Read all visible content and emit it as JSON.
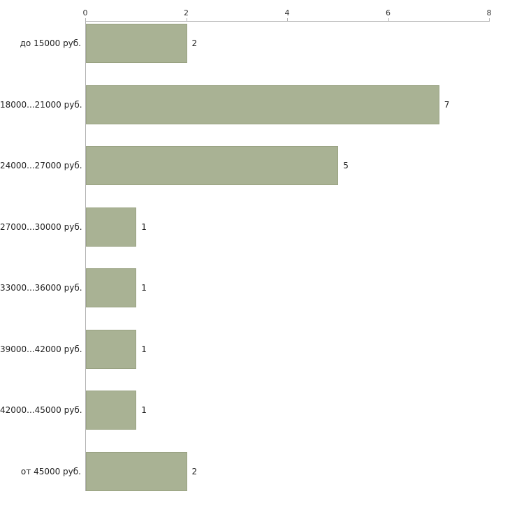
{
  "chart_data": {
    "type": "bar",
    "orientation": "horizontal",
    "categories": [
      "до 15000 руб.",
      "18000...21000 руб.",
      "24000...27000 руб.",
      "27000...30000 руб.",
      "33000...36000 руб.",
      "39000...42000 руб.",
      "42000...45000 руб.",
      "от 45000 руб."
    ],
    "values": [
      2,
      7,
      5,
      1,
      1,
      1,
      1,
      2
    ],
    "value_labels": [
      "2",
      "7",
      "5",
      "1",
      "1",
      "1",
      "1",
      "2"
    ],
    "title": "",
    "xlabel": "",
    "ylabel": "",
    "xlim": [
      0,
      8
    ],
    "x_ticks": [
      0,
      2,
      4,
      6,
      8
    ],
    "x_tick_labels": [
      "0",
      "2",
      "4",
      "6",
      "8"
    ],
    "grid": false,
    "legend": null,
    "bar_color": "#a9b294",
    "bar_border_color": "#99a282",
    "axis_color": "#b3b3b3"
  }
}
